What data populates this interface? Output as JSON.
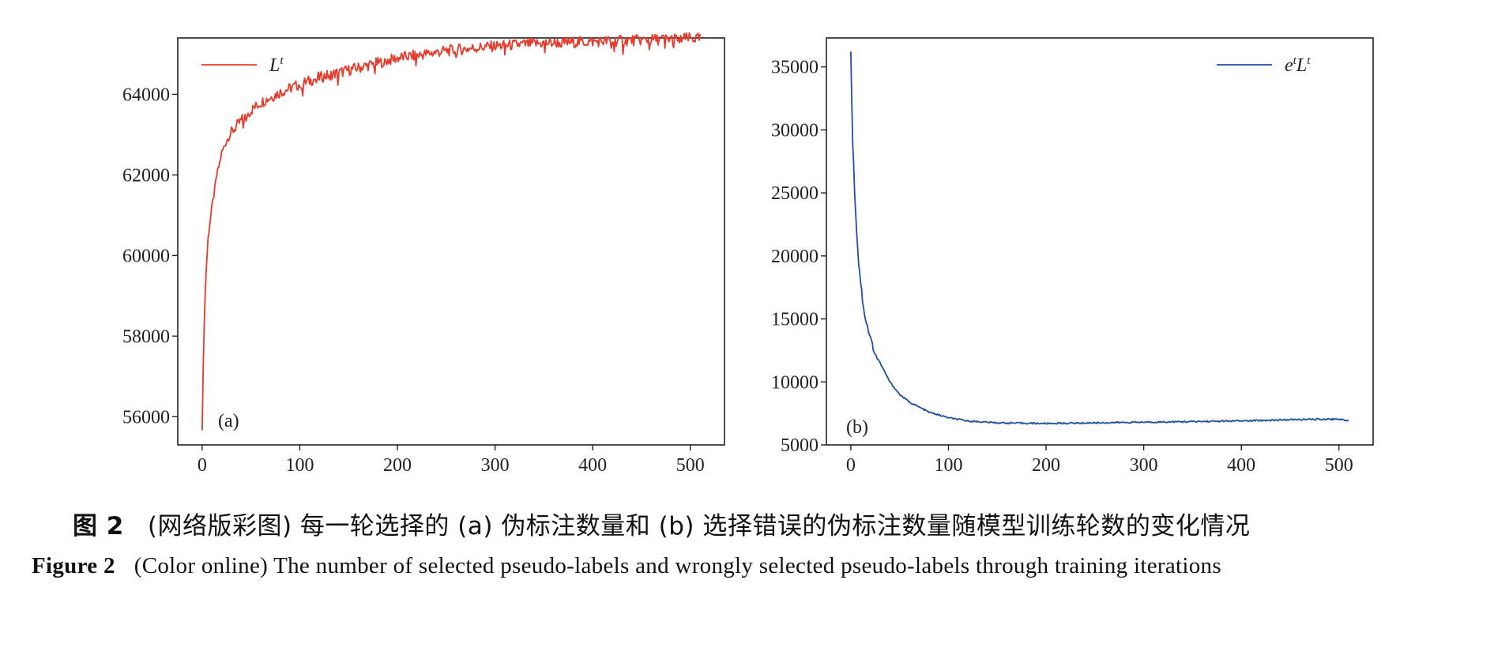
{
  "chart_data": [
    {
      "type": "line",
      "panel_label": "(a)",
      "xlim": [
        -25,
        535
      ],
      "ylim": [
        55300,
        65400
      ],
      "xticks": [
        0,
        100,
        200,
        300,
        400,
        500
      ],
      "xtick_labels": [
        "0",
        "100",
        "200",
        "300",
        "400",
        "500"
      ],
      "yticks": [
        56000,
        58000,
        60000,
        62000,
        64000
      ],
      "ytick_labels": [
        "56000",
        "58000",
        "60000",
        "62000",
        "64000"
      ],
      "grid": false,
      "legend_position": "top-left",
      "series": [
        {
          "name": "L",
          "name_sup": "t",
          "color": "#e8392a",
          "x": [
            0,
            2,
            4,
            6,
            8,
            10,
            12,
            15,
            18,
            20,
            25,
            30,
            40,
            50,
            60,
            80,
            100,
            120,
            150,
            200,
            250,
            300,
            350,
            400,
            450,
            500,
            510
          ],
          "y": [
            55750,
            58300,
            59600,
            60400,
            60850,
            61200,
            61500,
            62000,
            62300,
            62550,
            62850,
            63050,
            63350,
            63600,
            63800,
            64050,
            64250,
            64420,
            64600,
            64900,
            65080,
            65200,
            65270,
            65310,
            65350,
            65390,
            65380
          ]
        }
      ]
    },
    {
      "type": "line",
      "panel_label": "(b)",
      "xlim": [
        -25,
        535
      ],
      "ylim": [
        5000,
        37300
      ],
      "xticks": [
        0,
        100,
        200,
        300,
        400,
        500
      ],
      "xtick_labels": [
        "0",
        "100",
        "200",
        "300",
        "400",
        "500"
      ],
      "yticks": [
        5000,
        10000,
        15000,
        20000,
        25000,
        30000,
        35000
      ],
      "ytick_labels": [
        "5000",
        "10000",
        "15000",
        "20000",
        "25000",
        "30000",
        "35000"
      ],
      "grid": false,
      "legend_position": "top-right",
      "series": [
        {
          "name": "e",
          "name_sup": "t",
          "name_2": "L",
          "name_2_sup": "t",
          "color": "#1f4fa0",
          "x": [
            0,
            2,
            4,
            6,
            8,
            10,
            12,
            15,
            20,
            25,
            30,
            40,
            50,
            60,
            70,
            80,
            100,
            120,
            150,
            200,
            250,
            300,
            350,
            400,
            450,
            500,
            510
          ],
          "y": [
            36000,
            29000,
            25000,
            22000,
            19500,
            18000,
            16500,
            15000,
            13500,
            12200,
            11500,
            10000,
            9000,
            8400,
            8000,
            7600,
            7150,
            6900,
            6750,
            6700,
            6750,
            6800,
            6850,
            6900,
            7000,
            7050,
            6900
          ]
        }
      ]
    }
  ],
  "caption": {
    "cn_figure_no": "图 2",
    "cn_text": "(网络版彩图) 每一轮选择的 (a) 伪标注数量和 (b) 选择错误的伪标注数量随模型训练轮数的变化情况",
    "en_figure_no": "Figure 2",
    "en_text": "(Color online) The number of selected pseudo-labels and wrongly selected pseudo-labels through training iterations"
  }
}
